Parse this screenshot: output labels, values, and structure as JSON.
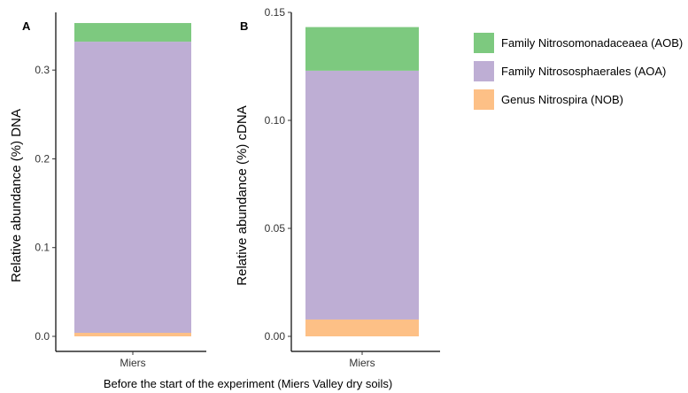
{
  "figure": {
    "x_title": "Before the start of the experiment (Miers Valley dry soils)"
  },
  "legend": {
    "items": [
      {
        "label": "Family Nitrosomonadaceaea (AOB)",
        "color": "#7dc97f"
      },
      {
        "label": "Family Nitrososphaerales (AOA)",
        "color": "#beaed4"
      },
      {
        "label": "Genus Nitrospira (NOB)",
        "color": "#fdc086"
      }
    ]
  },
  "chart_data": [
    {
      "type": "bar",
      "stacked": true,
      "panel": "A",
      "title": "",
      "xlabel": "",
      "ylabel": "Relative abundance (%) DNA",
      "ylim": [
        0,
        0.365
      ],
      "yticks": [
        "0.0",
        "0.1",
        "0.2",
        "0.3"
      ],
      "categories": [
        "Miers"
      ],
      "series": [
        {
          "name": "Genus Nitrospira (NOB)",
          "color": "#fdc086",
          "values": [
            0.004
          ]
        },
        {
          "name": "Family Nitrososphaerales (AOA)",
          "color": "#beaed4",
          "values": [
            0.328
          ]
        },
        {
          "name": "Family Nitrosomonadaceaea (AOB)",
          "color": "#7dc97f",
          "values": [
            0.021
          ]
        }
      ]
    },
    {
      "type": "bar",
      "stacked": true,
      "panel": "B",
      "title": "",
      "xlabel": "",
      "ylabel": "Relative abundance (%) cDNA",
      "ylim": [
        0,
        0.15
      ],
      "yticks": [
        "0.00",
        "0.05",
        "0.10",
        "0.15"
      ],
      "categories": [
        "Miers"
      ],
      "series": [
        {
          "name": "Genus Nitrospira (NOB)",
          "color": "#fdc086",
          "values": [
            0.0078
          ]
        },
        {
          "name": "Family Nitrososphaerales (AOA)",
          "color": "#beaed4",
          "values": [
            0.1152
          ]
        },
        {
          "name": "Family Nitrosomonadaceaea (AOB)",
          "color": "#7dc97f",
          "values": [
            0.0202
          ]
        }
      ]
    }
  ]
}
